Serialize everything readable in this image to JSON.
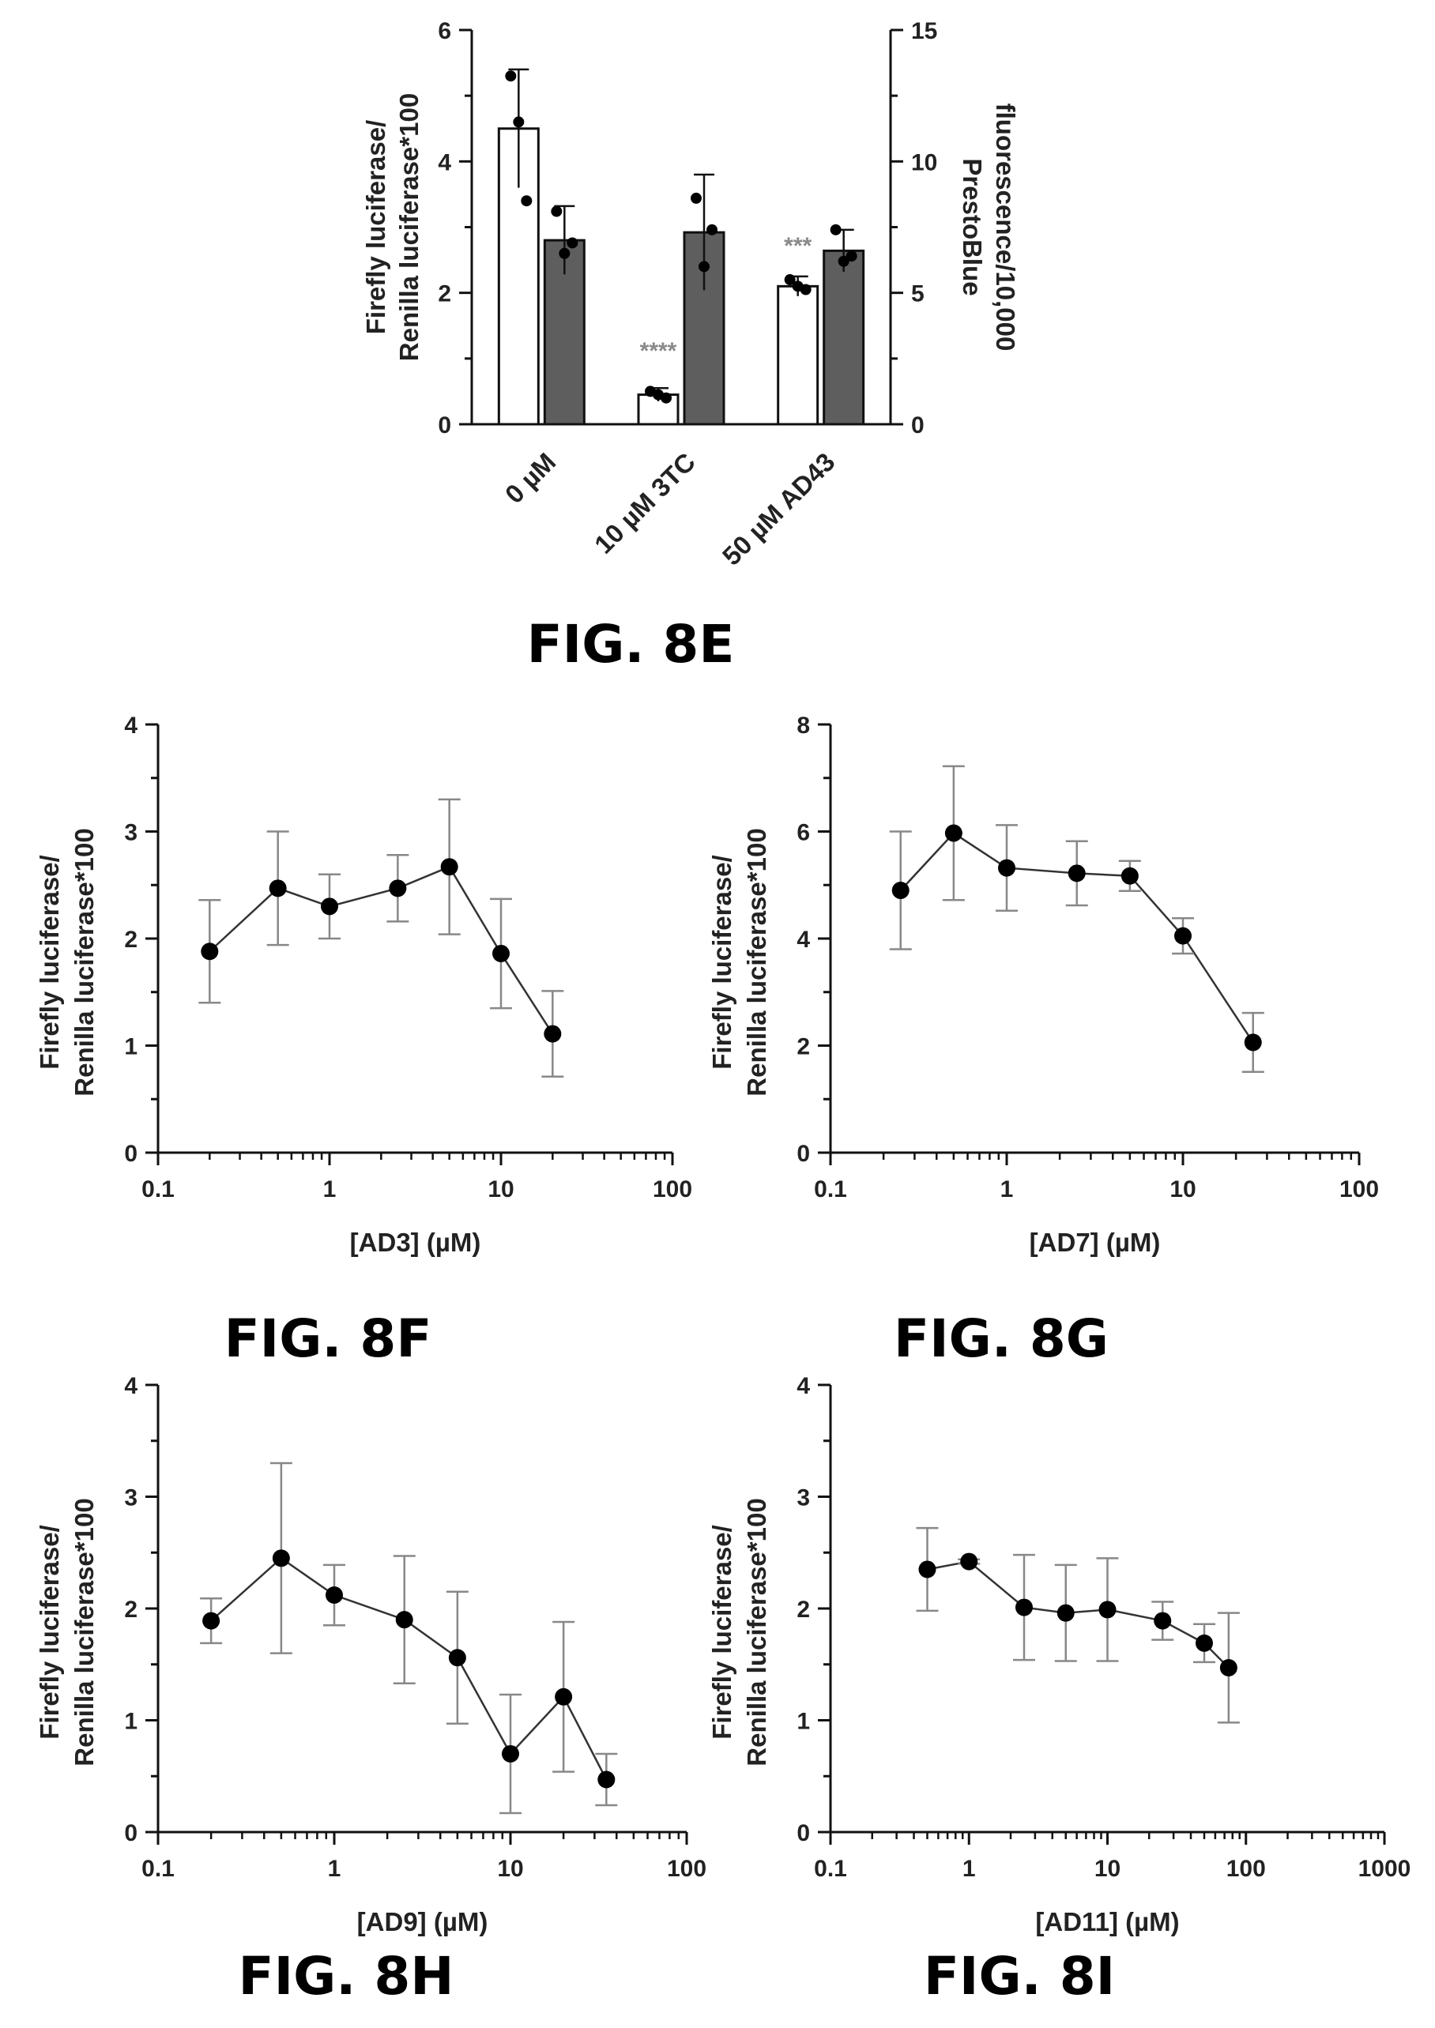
{
  "colors": {
    "axis": "#111111",
    "white_bar": "#ffffff",
    "gray_bar": "#5e5e5e",
    "point": "#000000",
    "line": "#333333",
    "error_bar": "#888888",
    "stars": "#8a8a8a"
  },
  "chart_data": [
    {
      "id": "8E",
      "type": "bar",
      "caption": "FIG. 8E",
      "categories": [
        "0 µM",
        "10 µM 3TC",
        "50 µM AD43"
      ],
      "ylabel_left": [
        "Firefly luciferase/",
        "Renilla luciferase*100"
      ],
      "ylabel_right": [
        "PrestoBlue",
        "fluorescence/10,000"
      ],
      "ylim_left": [
        0,
        6
      ],
      "yticks_left": [
        0,
        2,
        4,
        6
      ],
      "ylim_right": [
        0,
        15
      ],
      "yticks_right": [
        0,
        5,
        10,
        15
      ],
      "series": [
        {
          "axis": "left",
          "style": "white",
          "values": [
            4.5,
            0.45,
            2.1
          ],
          "err": [
            0.9,
            0.1,
            0.15
          ],
          "points": [
            [
              5.3,
              4.6,
              3.4
            ],
            [
              0.5,
              0.45,
              0.4
            ],
            [
              2.2,
              2.1,
              2.05
            ]
          ]
        },
        {
          "axis": "right",
          "style": "gray",
          "values": [
            7.0,
            7.3,
            6.6
          ],
          "err": [
            1.3,
            2.2,
            0.8
          ],
          "points": [
            [
              8.1,
              6.5,
              6.9
            ],
            [
              8.6,
              6.0,
              7.4
            ],
            [
              7.4,
              6.2,
              6.4
            ]
          ]
        }
      ],
      "annotations": [
        {
          "category": 1,
          "text": "****",
          "y": 1.0
        },
        {
          "category": 2,
          "text": "***",
          "y": 2.6
        }
      ]
    },
    {
      "id": "8F",
      "type": "line",
      "caption": "FIG. 8F",
      "xlabel": "[AD3] (µM)",
      "ylabel": [
        "Firefly luciferase/",
        "Renilla luciferase*100"
      ],
      "xscale": "log",
      "xlim": [
        0.1,
        100
      ],
      "xticks": [
        0.1,
        1,
        10,
        100
      ],
      "xtick_labels": [
        "0.1",
        "1",
        "10",
        "100"
      ],
      "ylim": [
        0,
        4
      ],
      "yticks": [
        0,
        1,
        2,
        3,
        4
      ],
      "x": [
        0.2,
        0.5,
        1,
        2.5,
        5,
        10,
        20
      ],
      "y": [
        1.88,
        2.47,
        2.3,
        2.47,
        2.67,
        1.86,
        1.11
      ],
      "err": [
        0.48,
        0.53,
        0.3,
        0.31,
        0.63,
        0.51,
        0.4
      ]
    },
    {
      "id": "8G",
      "type": "line",
      "caption": "FIG. 8G",
      "xlabel": "[AD7] (µM)",
      "ylabel": [
        "Firefly luciferase/",
        "Renilla luciferase*100"
      ],
      "xscale": "log",
      "xlim": [
        0.1,
        100
      ],
      "xticks": [
        0.1,
        1,
        10,
        100
      ],
      "xtick_labels": [
        "0.1",
        "1",
        "10",
        "100"
      ],
      "ylim": [
        0,
        8
      ],
      "yticks": [
        0,
        2,
        4,
        6,
        8
      ],
      "x": [
        0.25,
        0.5,
        1,
        2.5,
        5,
        10,
        25
      ],
      "y": [
        4.9,
        5.97,
        5.32,
        5.22,
        5.17,
        4.05,
        2.06
      ],
      "err": [
        1.1,
        1.25,
        0.8,
        0.6,
        0.28,
        0.33,
        0.55
      ]
    },
    {
      "id": "8H",
      "type": "line",
      "caption": "FIG. 8H",
      "xlabel": "[AD9] (µM)",
      "ylabel": [
        "Firefly luciferase/",
        "Renilla luciferase*100"
      ],
      "xscale": "log",
      "xlim": [
        0.1,
        100
      ],
      "xticks": [
        0.1,
        1,
        10,
        100
      ],
      "xtick_labels": [
        "0.1",
        "1",
        "10",
        "100"
      ],
      "ylim": [
        0,
        4
      ],
      "yticks": [
        0,
        1,
        2,
        3,
        4
      ],
      "x": [
        0.2,
        0.5,
        1,
        2.5,
        5,
        10,
        20,
        35
      ],
      "y": [
        1.89,
        2.45,
        2.12,
        1.9,
        1.56,
        0.7,
        1.21,
        0.47
      ],
      "err": [
        0.2,
        0.85,
        0.27,
        0.57,
        0.59,
        0.53,
        0.67,
        0.23
      ]
    },
    {
      "id": "8I",
      "type": "line",
      "caption": "FIG. 8I",
      "xlabel": "[AD11] (µM)",
      "ylabel": [
        "Firefly luciferase/",
        "Renilla luciferase*100"
      ],
      "xscale": "log",
      "xlim": [
        0.1,
        1000
      ],
      "xticks": [
        0.1,
        1,
        10,
        100,
        1000
      ],
      "xtick_labels": [
        "0.1",
        "1",
        "10",
        "100",
        "1000"
      ],
      "ylim": [
        0,
        4
      ],
      "yticks": [
        0,
        1,
        2,
        3,
        4
      ],
      "x": [
        0.5,
        1,
        2.5,
        5,
        10,
        25,
        50,
        75
      ],
      "y": [
        2.35,
        2.42,
        2.01,
        1.96,
        1.99,
        1.89,
        1.69,
        1.47
      ],
      "err": [
        0.37,
        0.02,
        0.47,
        0.43,
        0.46,
        0.17,
        0.17,
        0.49
      ]
    }
  ]
}
